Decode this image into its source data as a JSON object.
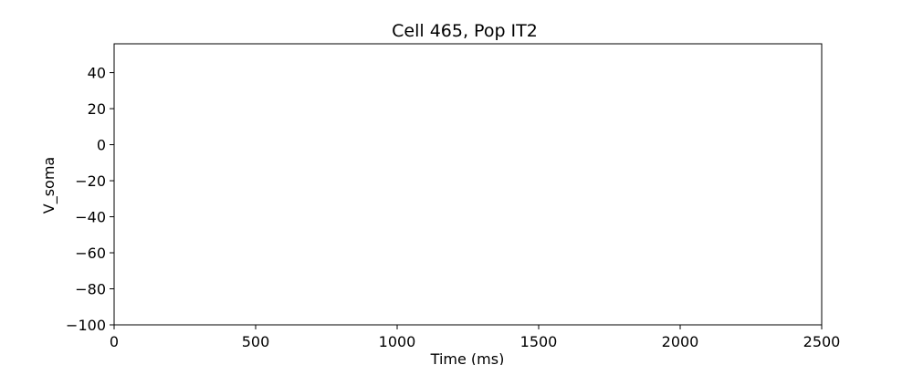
{
  "chart_data": {
    "type": "line",
    "title": "Cell 465, Pop IT2",
    "xlabel": "Time (ms)",
    "ylabel": "V_soma",
    "xlim": [
      0,
      2500
    ],
    "ylim": [
      -100,
      56
    ],
    "x_ticks": [
      0,
      500,
      1000,
      1500,
      2000,
      2500
    ],
    "x_tick_labels": [
      "0",
      "500",
      "1000",
      "1500",
      "2000",
      "2500"
    ],
    "y_ticks": [
      -100,
      -80,
      -60,
      -40,
      -20,
      0,
      20,
      40
    ],
    "y_tick_labels": [
      "−100",
      "−80",
      "−60",
      "−40",
      "−20",
      "0",
      "20",
      "40"
    ],
    "series": [],
    "grid": false,
    "legend": "none"
  }
}
